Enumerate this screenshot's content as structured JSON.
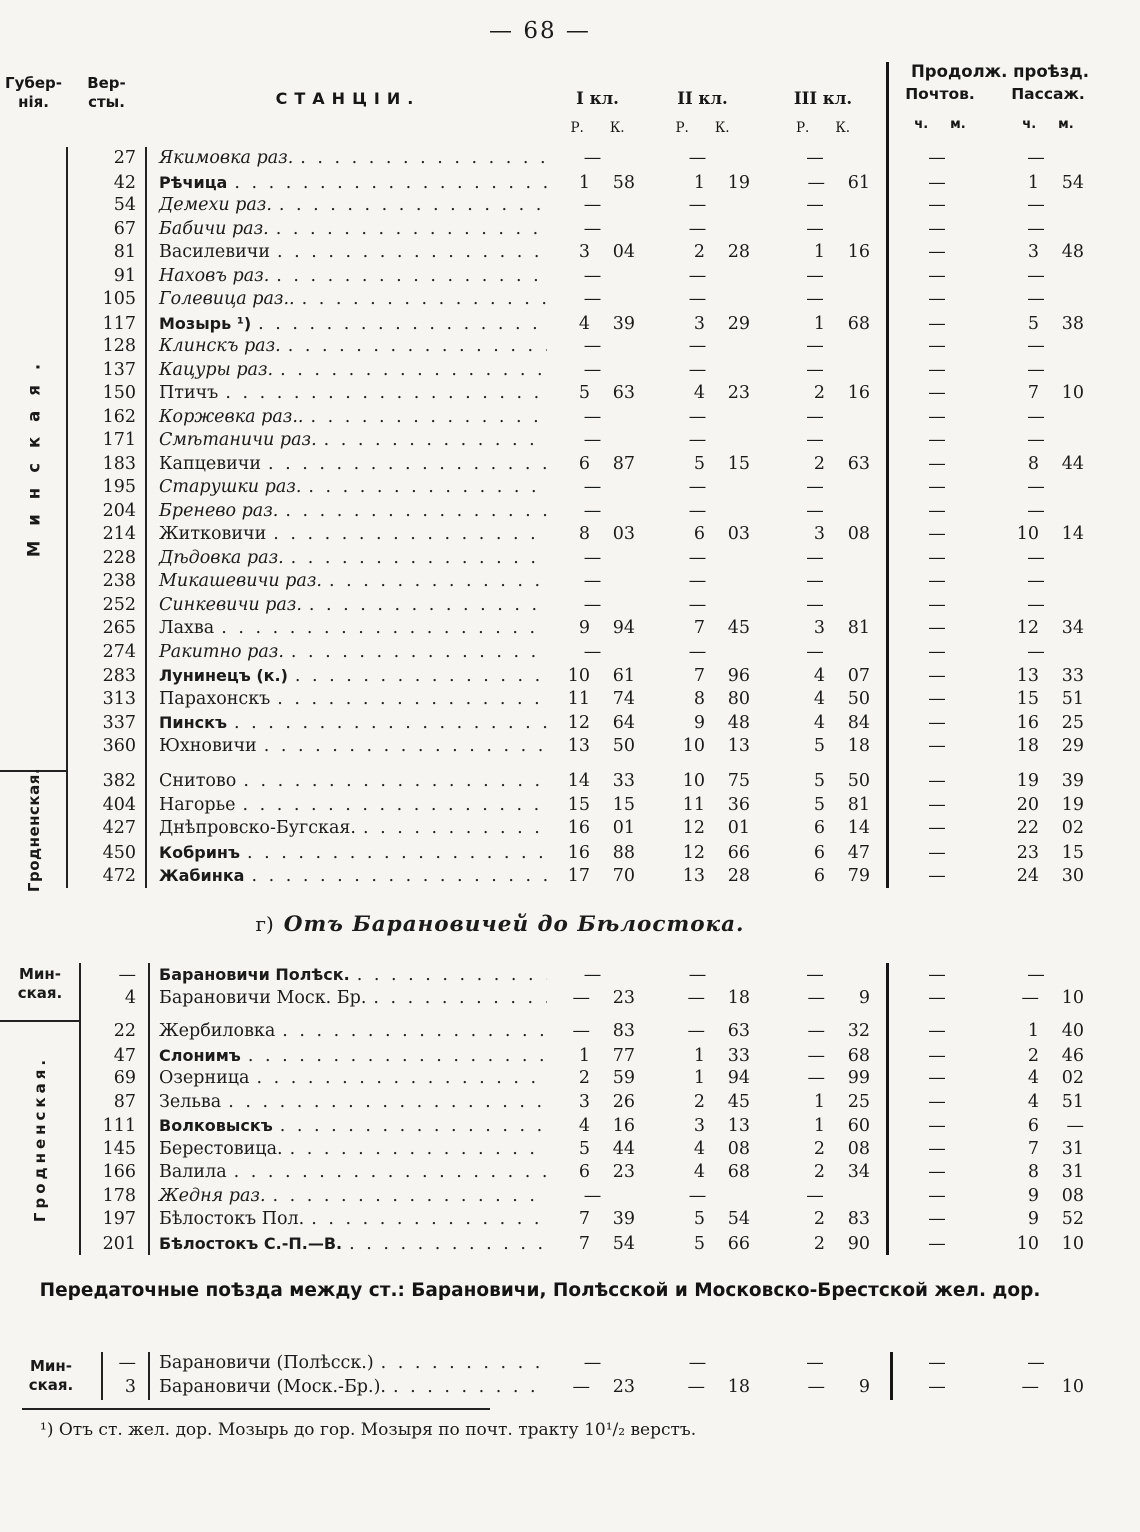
{
  "page": {
    "number_display": "— 68 —"
  },
  "header": {
    "gub1": "Губер-",
    "gub2": "нія.",
    "ver1": "Вер-",
    "ver2": "сты.",
    "stations": "СТАНЦІИ.",
    "kl": [
      "I кл.",
      "II кл.",
      "III кл."
    ],
    "r": "Р.",
    "k": "К.",
    "duration": "Продолж. проѣзд.",
    "post": "Почтов.",
    "pass": "Пассаж.",
    "ch": "ч.",
    "m": "м."
  },
  "table1": {
    "groups": [
      {
        "label": "Минская.",
        "label_mode": "spread",
        "rows": [
          {
            "versts": "27",
            "name": "Якимовка раз.",
            "style": "italic",
            "fares": [
              "—",
              "—",
              "—"
            ],
            "post": "—",
            "pass": "—"
          },
          {
            "versts": "42",
            "name": "Рѣчица",
            "style": "bold",
            "fares": [
              "1 58",
              "1 19",
              "— 61"
            ],
            "post": "—",
            "pass": "1 54"
          },
          {
            "versts": "54",
            "name": "Демехи раз.",
            "style": "italic",
            "fares": [
              "—",
              "—",
              "—"
            ],
            "post": "—",
            "pass": "—"
          },
          {
            "versts": "67",
            "name": "Бабичи раз.",
            "style": "italic",
            "fares": [
              "—",
              "—",
              "—"
            ],
            "post": "—",
            "pass": "—"
          },
          {
            "versts": "81",
            "name": "Василевичи",
            "style": "plain",
            "fares": [
              "3 04",
              "2 28",
              "1 16"
            ],
            "post": "—",
            "pass": "3 48"
          },
          {
            "versts": "91",
            "name": "Наховъ раз.",
            "style": "italic",
            "fares": [
              "—",
              "—",
              "—"
            ],
            "post": "—",
            "pass": "—"
          },
          {
            "versts": "105",
            "name": "Голевица раз..",
            "style": "italic",
            "fares": [
              "—",
              "—",
              "—"
            ],
            "post": "—",
            "pass": "—"
          },
          {
            "versts": "117",
            "name": "Мозырь ¹)",
            "style": "bold",
            "fares": [
              "4 39",
              "3 29",
              "1 68"
            ],
            "post": "—",
            "pass": "5 38"
          },
          {
            "versts": "128",
            "name": "Клинскъ раз.",
            "style": "italic",
            "fares": [
              "—",
              "—",
              "—"
            ],
            "post": "—",
            "pass": "—"
          },
          {
            "versts": "137",
            "name": "Кацуры раз.",
            "style": "italic",
            "fares": [
              "—",
              "—",
              "—"
            ],
            "post": "—",
            "pass": "—"
          },
          {
            "versts": "150",
            "name": "Птичъ",
            "style": "plain",
            "fares": [
              "5 63",
              "4 23",
              "2 16"
            ],
            "post": "—",
            "pass": "7 10"
          },
          {
            "versts": "162",
            "name": "Коржевка раз..",
            "style": "italic",
            "fares": [
              "—",
              "—",
              "—"
            ],
            "post": "—",
            "pass": "—"
          },
          {
            "versts": "171",
            "name": "Смѣтаничи раз.",
            "style": "italic",
            "fares": [
              "—",
              "—",
              "—"
            ],
            "post": "—",
            "pass": "—"
          },
          {
            "versts": "183",
            "name": "Капцевичи",
            "style": "plain",
            "fares": [
              "6 87",
              "5 15",
              "2 63"
            ],
            "post": "—",
            "pass": "8 44"
          },
          {
            "versts": "195",
            "name": "Старушки раз.",
            "style": "italic",
            "fares": [
              "—",
              "—",
              "—"
            ],
            "post": "—",
            "pass": "—"
          },
          {
            "versts": "204",
            "name": "Бренево раз.",
            "style": "italic",
            "fares": [
              "—",
              "—",
              "—"
            ],
            "post": "—",
            "pass": "—"
          },
          {
            "versts": "214",
            "name": "Житковичи",
            "style": "plain",
            "fares": [
              "8 03",
              "6 03",
              "3 08"
            ],
            "post": "—",
            "pass": "10 14"
          },
          {
            "versts": "228",
            "name": "Дѣдовка раз.",
            "style": "italic",
            "fares": [
              "—",
              "—",
              "—"
            ],
            "post": "—",
            "pass": "—"
          },
          {
            "versts": "238",
            "name": "Микашевичи раз.",
            "style": "italic",
            "fares": [
              "—",
              "—",
              "—"
            ],
            "post": "—",
            "pass": "—"
          },
          {
            "versts": "252",
            "name": "Синкевичи раз.",
            "style": "italic",
            "fares": [
              "—",
              "—",
              "—"
            ],
            "post": "—",
            "pass": "—"
          },
          {
            "versts": "265",
            "name": "Лахва",
            "style": "plain",
            "fares": [
              "9 94",
              "7 45",
              "3 81"
            ],
            "post": "—",
            "pass": "12 34"
          },
          {
            "versts": "274",
            "name": "Ракитно раз.",
            "style": "italic",
            "fares": [
              "—",
              "—",
              "—"
            ],
            "post": "—",
            "pass": "—"
          },
          {
            "versts": "283",
            "name": "Лунинецъ (к.)",
            "style": "bold",
            "fares": [
              "10 61",
              "7 96",
              "4 07"
            ],
            "post": "—",
            "pass": "13 33"
          },
          {
            "versts": "313",
            "name": "Парахонскъ",
            "style": "plain",
            "fares": [
              "11 74",
              "8 80",
              "4 50"
            ],
            "post": "—",
            "pass": "15 51"
          },
          {
            "versts": "337",
            "name": "Пинскъ",
            "style": "bold",
            "fares": [
              "12 64",
              "9 48",
              "4 84"
            ],
            "post": "—",
            "pass": "16 25"
          },
          {
            "versts": "360",
            "name": "Юхновичи",
            "style": "plain",
            "fares": [
              "13 50",
              "10 13",
              "5 18"
            ],
            "post": "—",
            "pass": "18 29"
          }
        ]
      },
      {
        "label": "Гродненская.",
        "label_mode": "compact",
        "rows": [
          {
            "versts": "382",
            "name": "Снитово",
            "style": "plain",
            "fares": [
              "14 33",
              "10 75",
              "5 50"
            ],
            "post": "—",
            "pass": "19 39"
          },
          {
            "versts": "404",
            "name": "Нагорье",
            "style": "plain",
            "fares": [
              "15 15",
              "11 36",
              "5 81"
            ],
            "post": "—",
            "pass": "20 19"
          },
          {
            "versts": "427",
            "name": "Днѣпровско-Бугская.",
            "style": "plain",
            "fares": [
              "16 01",
              "12 01",
              "6 14"
            ],
            "post": "—",
            "pass": "22 02"
          },
          {
            "versts": "450",
            "name": "Кобринъ",
            "style": "bold",
            "fares": [
              "16 88",
              "12 66",
              "6 47"
            ],
            "post": "—",
            "pass": "23 15"
          },
          {
            "versts": "472",
            "name": "Жабинка",
            "style": "bold",
            "fares": [
              "17 70",
              "13 28",
              "6 79"
            ],
            "post": "—",
            "pass": "24 30"
          }
        ]
      }
    ]
  },
  "section2": {
    "prefix": "г)",
    "title": "Отъ Барановичей до Бѣлостока."
  },
  "table2": {
    "groups": [
      {
        "label": [
          "Мин-",
          "ская."
        ],
        "label_mode": "hl",
        "rows": [
          {
            "versts": "—",
            "name": "Барановичи Полѣск.",
            "style": "bold",
            "fares": [
              "—",
              "—",
              "—"
            ],
            "post": "—",
            "pass": "—"
          },
          {
            "versts": "4",
            "name": "Барановичи Моск. Бр.",
            "style": "plain",
            "fares": [
              "— 23",
              "— 18",
              "— 9"
            ],
            "post": "—",
            "pass": "— 10"
          }
        ]
      },
      {
        "label": "Гродненская.",
        "label_mode": "mid",
        "rows": [
          {
            "versts": "22",
            "name": "Жербиловка",
            "style": "plain",
            "fares": [
              "— 83",
              "— 63",
              "— 32"
            ],
            "post": "—",
            "pass": "1 40"
          },
          {
            "versts": "47",
            "name": "Слонимъ",
            "style": "bold",
            "fares": [
              "1 77",
              "1 33",
              "— 68"
            ],
            "post": "—",
            "pass": "2 46"
          },
          {
            "versts": "69",
            "name": "Озерница",
            "style": "plain",
            "fares": [
              "2 59",
              "1 94",
              "— 99"
            ],
            "post": "—",
            "pass": "4 02"
          },
          {
            "versts": "87",
            "name": "Зельва",
            "style": "plain",
            "fares": [
              "3 26",
              "2 45",
              "1 25"
            ],
            "post": "—",
            "pass": "4 51"
          },
          {
            "versts": "111",
            "name": "Волковыскъ",
            "style": "bold",
            "fares": [
              "4 16",
              "3 13",
              "1 60"
            ],
            "post": "—",
            "pass": "6 —"
          },
          {
            "versts": "145",
            "name": "Берестовица.",
            "style": "plain",
            "fares": [
              "5 44",
              "4 08",
              "2 08"
            ],
            "post": "—",
            "pass": "7 31"
          },
          {
            "versts": "166",
            "name": "Валила",
            "style": "plain",
            "fares": [
              "6 23",
              "4 68",
              "2 34"
            ],
            "post": "—",
            "pass": "8 31"
          },
          {
            "versts": "178",
            "name": "Жедня раз.",
            "style": "italic",
            "fares": [
              "—",
              "—",
              "—"
            ],
            "post": "—",
            "pass": "9 08"
          },
          {
            "versts": "197",
            "name": "Бѣлостокъ Пол.",
            "style": "plain",
            "fares": [
              "7 39",
              "5 54",
              "2 83"
            ],
            "post": "—",
            "pass": "9 52"
          },
          {
            "versts": "201",
            "name": "Бѣлостокъ С.-П.—В.",
            "style": "bold",
            "fares": [
              "7 54",
              "5 66",
              "2 90"
            ],
            "post": "—",
            "pass": "10 10"
          }
        ]
      }
    ]
  },
  "section3": {
    "title": "Передаточные поѣзда между ст.: Барановичи, Полѣсской и Московско-Брестской жел. дор."
  },
  "table3": {
    "groups": [
      {
        "label": [
          "Мин-",
          "ская."
        ],
        "label_mode": "hm",
        "rows": [
          {
            "versts": "—",
            "name": "Барановичи (Полѣсск.)",
            "style": "plain",
            "fares": [
              "—",
              "—",
              "—"
            ],
            "post": "—",
            "pass": "—"
          },
          {
            "versts": "3",
            "name": "Барановичи (Моск.-Бр.).",
            "style": "plain",
            "fares": [
              "— 23",
              "— 18",
              "— 9"
            ],
            "post": "—",
            "pass": "— 10"
          }
        ]
      }
    ]
  },
  "footnote": {
    "marker": "¹)",
    "text": "Отъ ст. жел. дор. Мозырь до гор. Мозыря по почт. тракту 10¹/₂ верстъ."
  }
}
